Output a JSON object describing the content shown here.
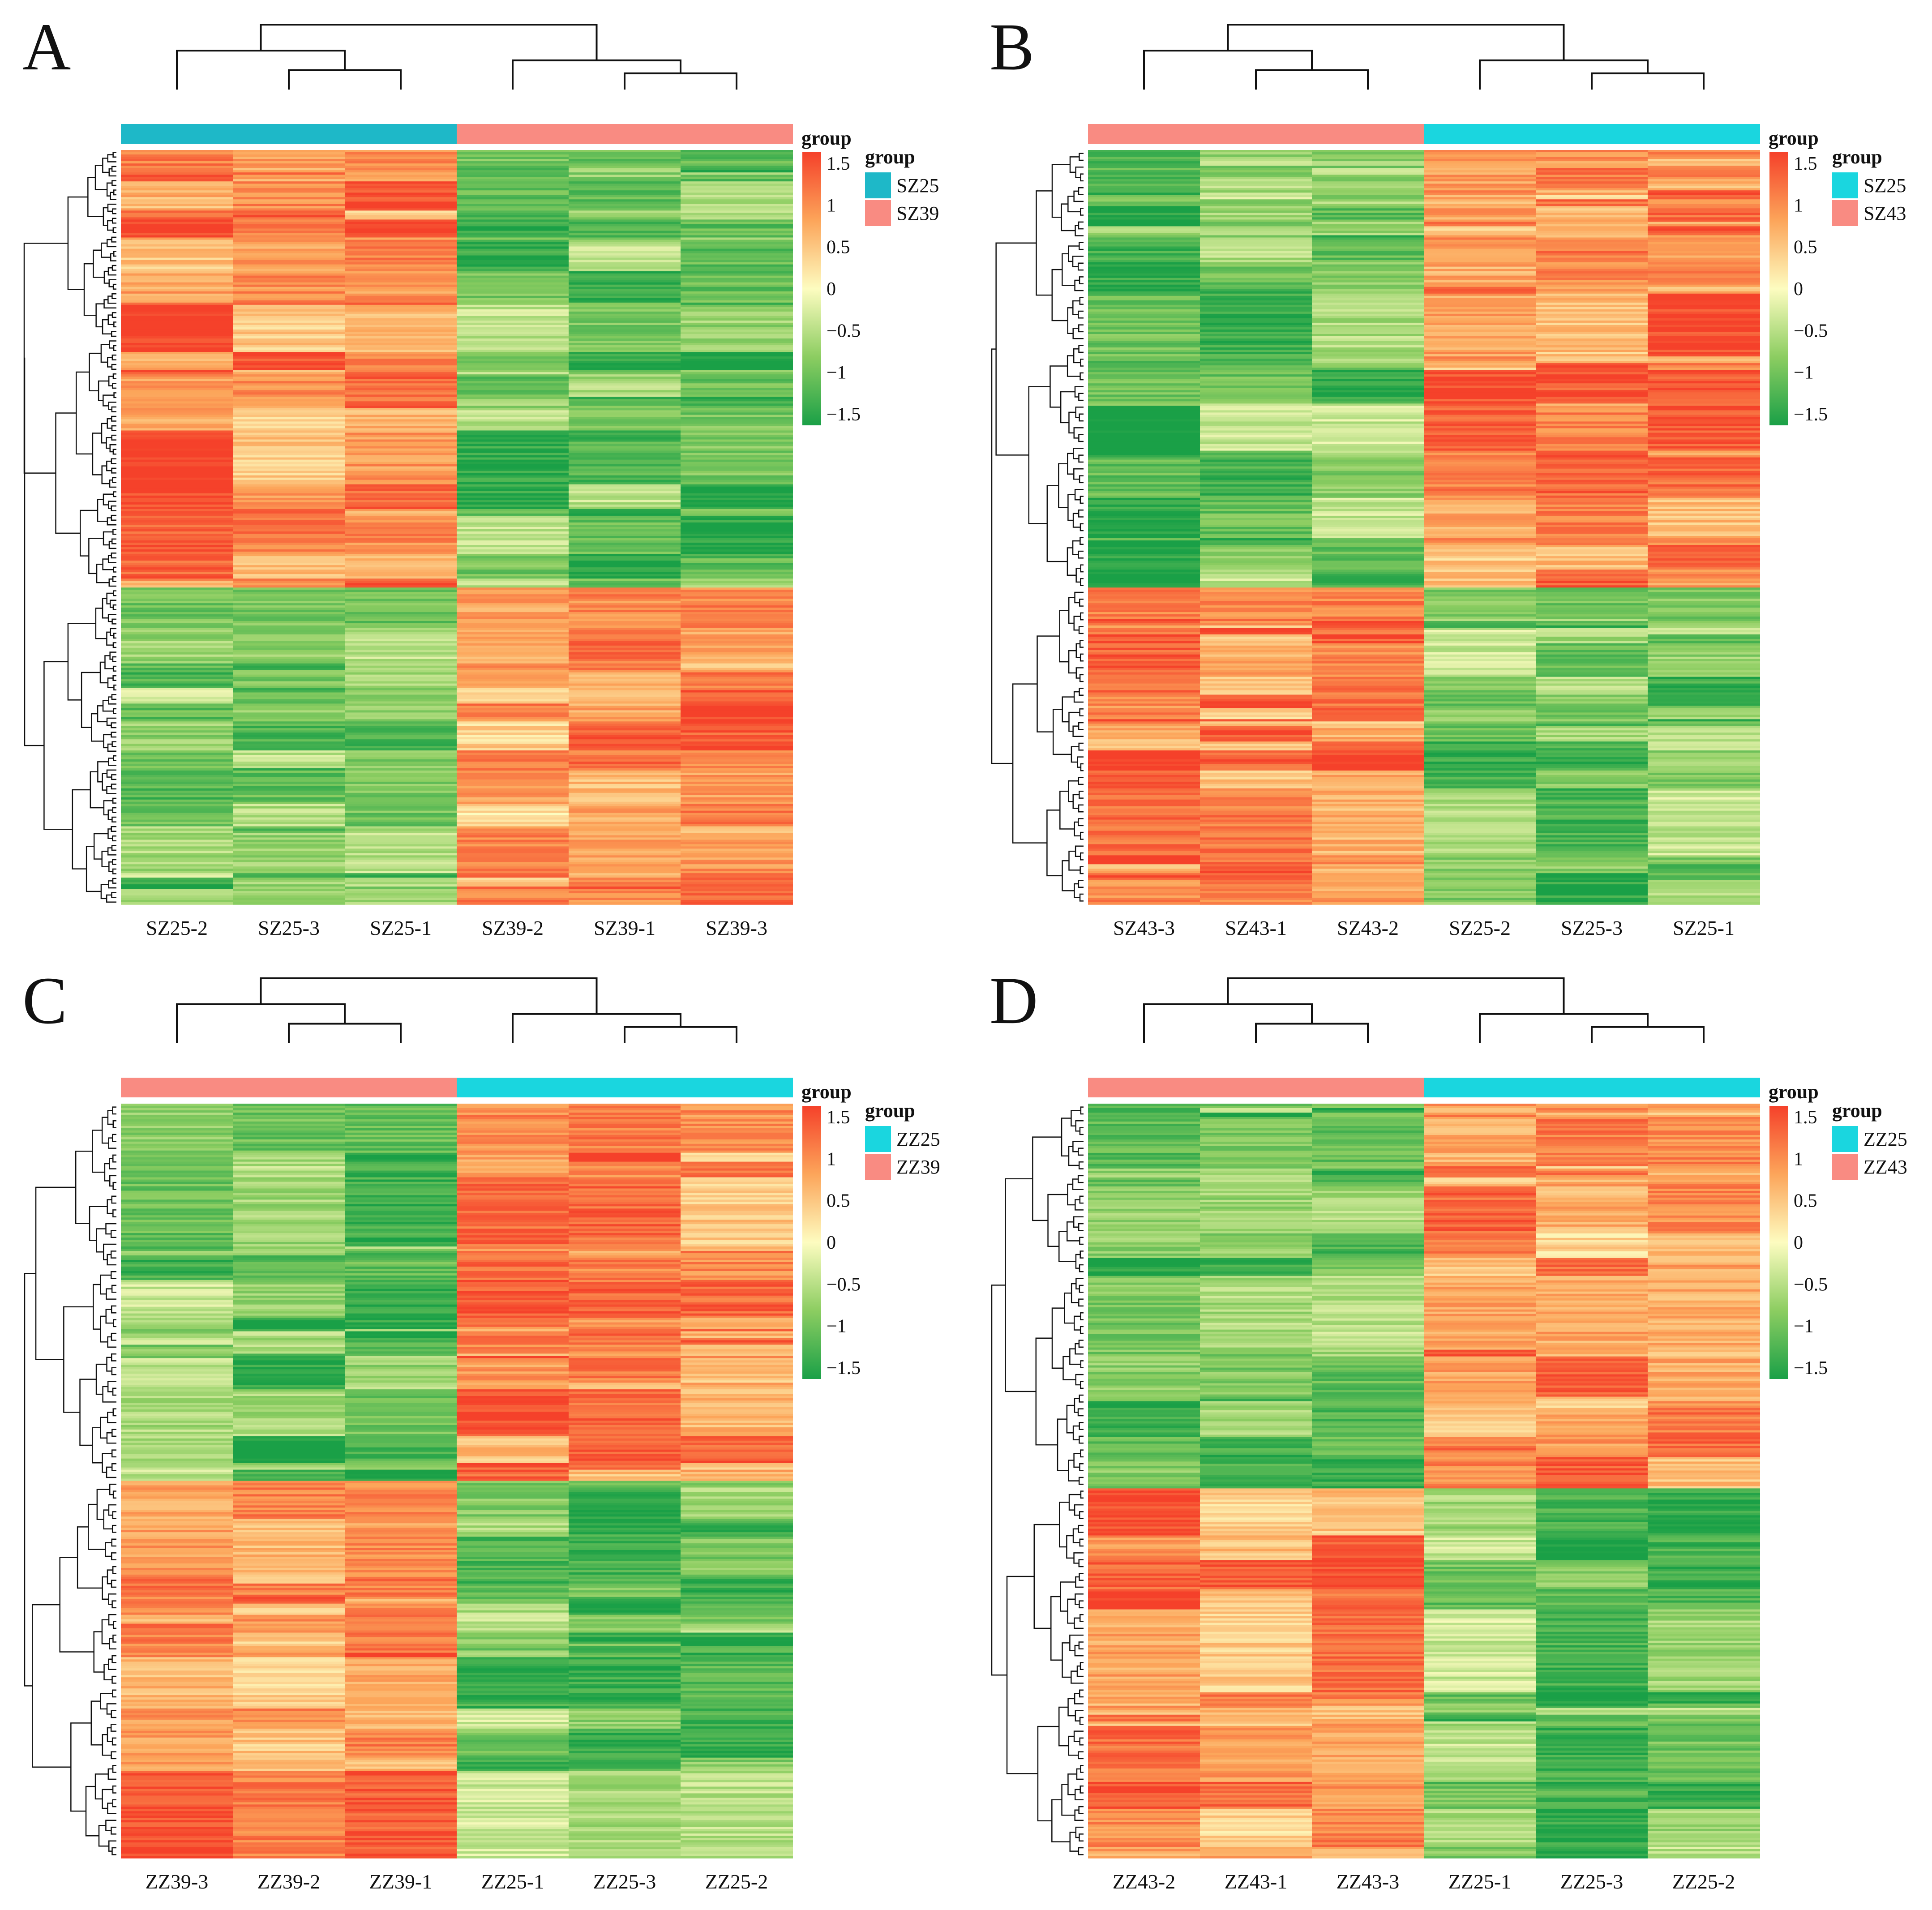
{
  "palette": {
    "low": "#1aa047",
    "lowmid": "#8ccd61",
    "mid": "#fdfcc0",
    "highmid": "#fca55a",
    "high": "#f5412a",
    "group_teal": "#1eb8c8",
    "group_cyan": "#1ad6df",
    "group_salmon": "#f98b82",
    "tree": "#111111"
  },
  "chart_data": [
    {
      "panel": "A",
      "type": "heatmap",
      "columns": [
        "SZ25-2",
        "SZ25-3",
        "SZ25-1",
        "SZ39-2",
        "SZ39-1",
        "SZ39-3"
      ],
      "column_groups": [
        "SZ25",
        "SZ25",
        "SZ25",
        "SZ39",
        "SZ39",
        "SZ39"
      ],
      "legend_title": "group",
      "legend": [
        {
          "label": "SZ25",
          "color": "#1eb8c8"
        },
        {
          "label": "SZ39",
          "color": "#f98b82"
        }
      ],
      "color_scale": {
        "min": -1.5,
        "max": 1.5,
        "ticks": [
          "1.5",
          "1",
          "0.5",
          "0",
          "−0.5",
          "−1",
          "−1.5"
        ]
      },
      "row_clusters": [
        {
          "fraction": 0.58,
          "means": [
            1.05,
            0.85,
            0.95,
            -0.9,
            -0.95,
            -1.0
          ]
        },
        {
          "fraction": 0.42,
          "means": [
            -0.9,
            -0.85,
            -0.95,
            0.75,
            0.95,
            1.0
          ]
        }
      ],
      "col_dendrogram": [
        [
          1,
          2,
          0.3
        ],
        [
          0,
          -1,
          0.6
        ],
        [
          4,
          5,
          0.25
        ],
        [
          3,
          -3,
          0.45
        ],
        [
          -2,
          -4,
          1.0
        ]
      ],
      "row_leaves": 160,
      "seed": 11
    },
    {
      "panel": "B",
      "type": "heatmap",
      "columns": [
        "SZ43-3",
        "SZ43-1",
        "SZ43-2",
        "SZ25-2",
        "SZ25-3",
        "SZ25-1"
      ],
      "column_groups": [
        "SZ43",
        "SZ43",
        "SZ43",
        "SZ25",
        "SZ25",
        "SZ25"
      ],
      "legend_title": "group",
      "legend": [
        {
          "label": "SZ25",
          "color": "#1ad6df"
        },
        {
          "label": "SZ43",
          "color": "#f98b82"
        }
      ],
      "color_scale": {
        "min": -1.5,
        "max": 1.5,
        "ticks": [
          "1.5",
          "1",
          "0.5",
          "0",
          "−0.5",
          "−1",
          "−1.5"
        ]
      },
      "row_clusters": [
        {
          "fraction": 0.58,
          "means": [
            -1.15,
            -0.75,
            -0.8,
            0.9,
            0.95,
            1.0
          ]
        },
        {
          "fraction": 0.42,
          "means": [
            1.05,
            0.95,
            1.0,
            -0.85,
            -0.9,
            -0.85
          ]
        }
      ],
      "col_dendrogram": [
        [
          1,
          2,
          0.3
        ],
        [
          0,
          -1,
          0.6
        ],
        [
          4,
          5,
          0.25
        ],
        [
          3,
          -3,
          0.45
        ],
        [
          -2,
          -4,
          1.0
        ]
      ],
      "row_leaves": 110,
      "seed": 23
    },
    {
      "panel": "C",
      "type": "heatmap",
      "columns": [
        "ZZ39-3",
        "ZZ39-2",
        "ZZ39-1",
        "ZZ25-1",
        "ZZ25-3",
        "ZZ25-2"
      ],
      "column_groups": [
        "ZZ39",
        "ZZ39",
        "ZZ39",
        "ZZ25",
        "ZZ25",
        "ZZ25"
      ],
      "legend_title": "group",
      "legend": [
        {
          "label": "ZZ25",
          "color": "#1ad6df"
        },
        {
          "label": "ZZ39",
          "color": "#f98b82"
        }
      ],
      "color_scale": {
        "min": -1.5,
        "max": 1.5,
        "ticks": [
          "1.5",
          "1",
          "0.5",
          "0",
          "−0.5",
          "−1",
          "−1.5"
        ]
      },
      "row_clusters": [
        {
          "fraction": 0.5,
          "means": [
            -0.75,
            -0.95,
            -1.0,
            0.95,
            1.05,
            0.9
          ]
        },
        {
          "fraction": 0.5,
          "means": [
            0.85,
            0.9,
            0.95,
            -0.8,
            -1.0,
            -0.95
          ]
        }
      ],
      "col_dendrogram": [
        [
          1,
          2,
          0.3
        ],
        [
          0,
          -1,
          0.6
        ],
        [
          4,
          5,
          0.25
        ],
        [
          3,
          -3,
          0.45
        ],
        [
          -2,
          -4,
          1.0
        ]
      ],
      "row_leaves": 110,
      "seed": 37
    },
    {
      "panel": "D",
      "type": "heatmap",
      "columns": [
        "ZZ43-2",
        "ZZ43-1",
        "ZZ43-3",
        "ZZ25-1",
        "ZZ25-3",
        "ZZ25-2"
      ],
      "column_groups": [
        "ZZ43",
        "ZZ43",
        "ZZ43",
        "ZZ25",
        "ZZ25",
        "ZZ25"
      ],
      "legend_title": "group",
      "legend": [
        {
          "label": "ZZ25",
          "color": "#1ad6df"
        },
        {
          "label": "ZZ43",
          "color": "#f98b82"
        }
      ],
      "color_scale": {
        "min": -1.5,
        "max": 1.5,
        "ticks": [
          "1.5",
          "1",
          "0.5",
          "0",
          "−0.5",
          "−1",
          "−1.5"
        ]
      },
      "row_clusters": [
        {
          "fraction": 0.51,
          "means": [
            -0.95,
            -0.9,
            -0.9,
            0.95,
            0.85,
            1.0
          ]
        },
        {
          "fraction": 0.49,
          "means": [
            1.05,
            0.85,
            0.95,
            -0.8,
            -1.0,
            -0.9
          ]
        }
      ],
      "col_dendrogram": [
        [
          1,
          2,
          0.3
        ],
        [
          0,
          -1,
          0.6
        ],
        [
          4,
          5,
          0.25
        ],
        [
          3,
          -3,
          0.45
        ],
        [
          -2,
          -4,
          1.0
        ]
      ],
      "row_leaves": 110,
      "seed": 53
    }
  ]
}
